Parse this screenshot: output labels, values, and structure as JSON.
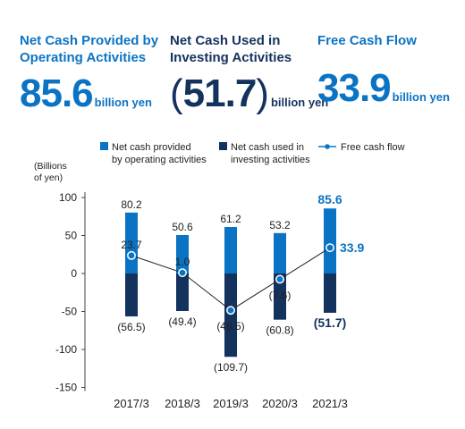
{
  "kpis": [
    {
      "label_lines": [
        "Net Cash Provided by",
        "Operating Activities"
      ],
      "value": "85.6",
      "unit": "billion yen",
      "color": "#0b73c4"
    },
    {
      "label_lines": [
        "Net Cash Used in",
        "Investing Activities"
      ],
      "value": "51.7",
      "unit": "billion yen",
      "color": "#13325e"
    },
    {
      "label_lines": [
        "Free Cash Flow"
      ],
      "value": "33.9",
      "unit": "billion yen",
      "color": "#0b73c4"
    }
  ],
  "colors": {
    "operating": "#0b73c4",
    "investing": "#13325e",
    "line": "#222222"
  },
  "chart_data": {
    "type": "bar",
    "ylabel": "(Billions\nof yen)",
    "ylim": [
      -150,
      100
    ],
    "yticks": [
      100,
      50,
      0,
      -50,
      -100,
      -150
    ],
    "categories": [
      "2017/3",
      "2018/3",
      "2019/3",
      "2020/3",
      "2021/3"
    ],
    "series": [
      {
        "name": "Net cash provided by operating activities",
        "legend_lines": [
          "Net cash provided",
          "by operating activities"
        ],
        "type": "bar",
        "values": [
          80.2,
          50.6,
          61.2,
          53.2,
          85.6
        ],
        "labels": [
          "80.2",
          "50.6",
          "61.2",
          "53.2",
          "85.6"
        ]
      },
      {
        "name": "Net cash used in investing activities",
        "legend_lines": [
          "Net cash used in",
          "investing activities"
        ],
        "type": "bar",
        "values": [
          -56.5,
          -49.4,
          -109.7,
          -60.8,
          -51.7
        ],
        "labels": [
          "(56.5)",
          "(49.4)",
          "(109.7)",
          "(60.8)",
          "(51.7)"
        ]
      },
      {
        "name": "Free cash flow",
        "legend_lines": [
          "Free cash flow"
        ],
        "type": "line",
        "values": [
          23.7,
          1.0,
          -48.5,
          -7.6,
          33.9
        ],
        "labels": [
          "23.7",
          "1.0",
          "(48.5)",
          "(7.6)",
          "33.9"
        ]
      }
    ],
    "legend": "top",
    "grid": false
  }
}
